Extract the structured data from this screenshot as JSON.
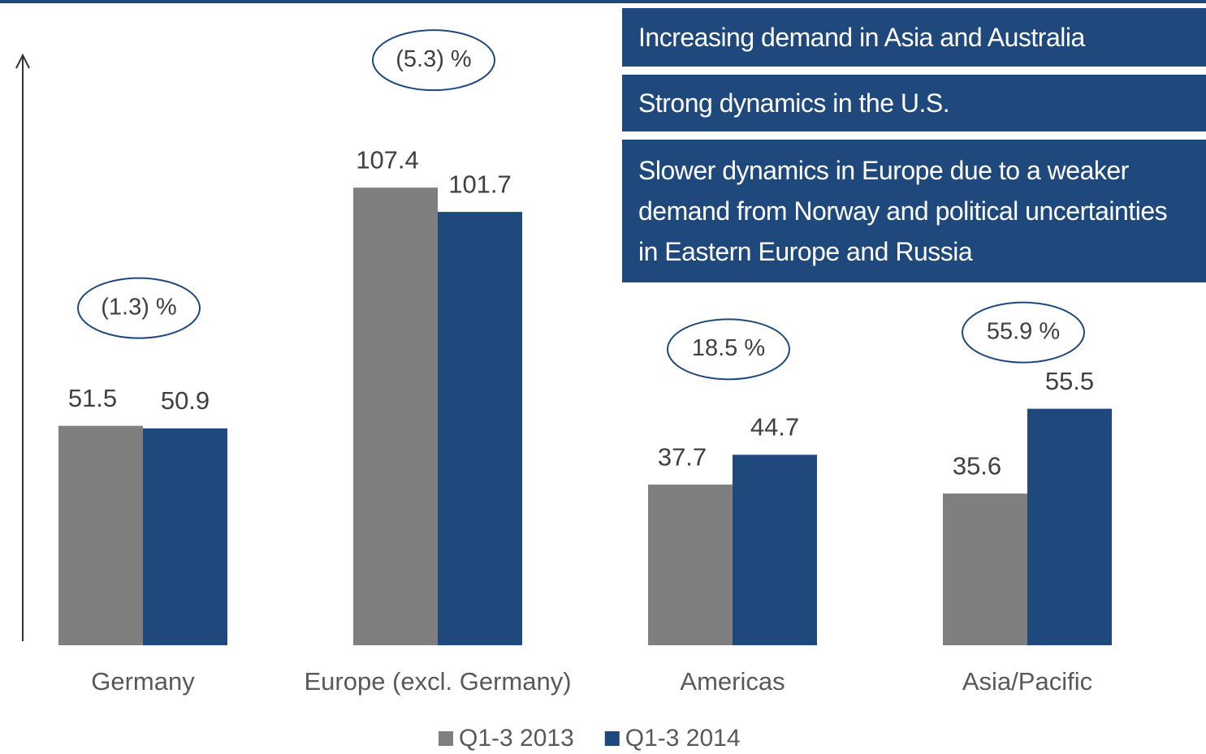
{
  "chart_data": {
    "type": "bar",
    "categories": [
      "Germany",
      "Europe (excl. Germany)",
      "Americas",
      "Asia/Pacific"
    ],
    "series": [
      {
        "name": "Q1-3 2013",
        "color": "#7f7f7f",
        "values": [
          51.5,
          107.4,
          37.7,
          35.6
        ]
      },
      {
        "name": "Q1-3 2014",
        "color": "#1f497d",
        "values": [
          50.9,
          101.7,
          44.7,
          55.5
        ]
      }
    ],
    "annotations": [
      "(1.3) %",
      "(5.3) %",
      "18.5 %",
      "55.9 %"
    ],
    "text_boxes": [
      "Increasing demand in Asia and Australia",
      "Strong dynamics in the U.S.",
      "Slower dynamics in Europe due to a weaker demand from Norway and political uncertainties in Eastern Europe and Russia"
    ],
    "ylim": [
      0,
      140
    ]
  }
}
